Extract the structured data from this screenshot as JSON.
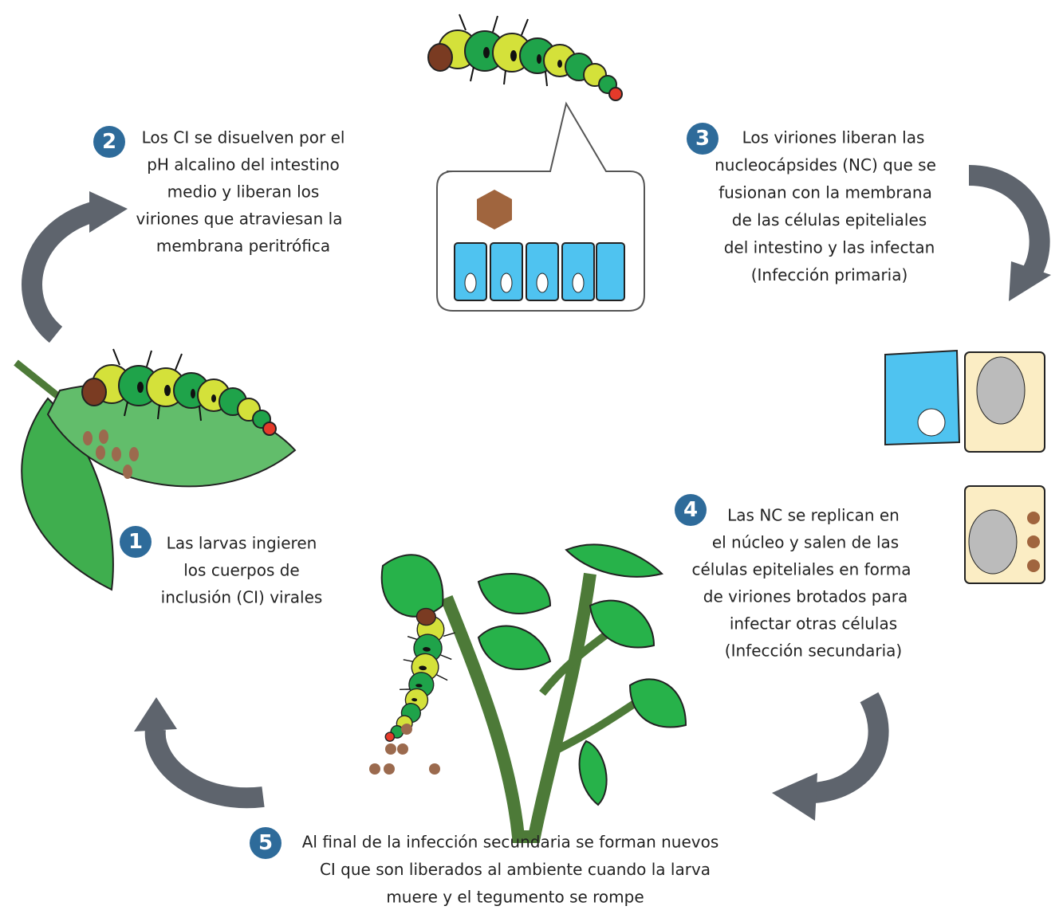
{
  "steps": [
    {
      "number": 1,
      "lines": [
        "Las larvas ingieren",
        "los cuerpos de",
        "inclusión (CI) virales"
      ]
    },
    {
      "number": 2,
      "lines": [
        "Los CI se disuelven por el",
        "pH alcalino del intestino",
        "medio y liberan los",
        "viriones que atraviesan la",
        "membrana peritrófica"
      ]
    },
    {
      "number": 3,
      "lines": [
        "Los viriones liberan las",
        "nucleocápsides (NC) que se",
        "fusionan con la membrana",
        "de las células epiteliales",
        "del intestino y las infectan",
        "(Infección primaria)"
      ]
    },
    {
      "number": 4,
      "lines": [
        "Las NC se replican en",
        "el núcleo y salen de las",
        "células epiteliales en forma",
        "de viriones brotados para",
        "infectar otras células",
        "(Infección secundaria)"
      ]
    },
    {
      "number": 5,
      "lines": [
        "Al final de la infección secundaria se forman nuevos",
        "CI que son liberados al ambiente cuando la larva",
        "muere y el tegumento se rompe"
      ]
    }
  ]
}
